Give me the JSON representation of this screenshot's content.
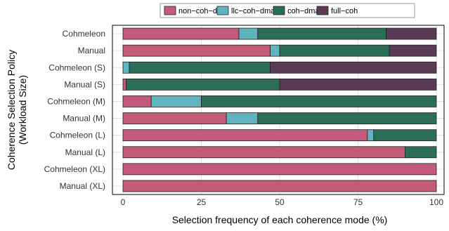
{
  "chart_data": {
    "type": "bar",
    "orientation": "horizontal",
    "stacked": true,
    "categories": [
      "Cohmeleon",
      "Manual",
      "Cohmeleon (S)",
      "Manual (S)",
      "Cohmeleon (M)",
      "Manual (M)",
      "Cohmeleon (L)",
      "Manual (L)",
      "Cohmeleon (XL)",
      "Manual (XL)"
    ],
    "series": [
      {
        "name": "non−coh−dma",
        "color": "#c45a7a",
        "values": [
          37,
          47,
          0,
          1,
          9,
          33,
          78,
          90,
          100,
          100
        ]
      },
      {
        "name": "llc−coh−dma",
        "color": "#5fb4bf",
        "values": [
          6,
          3,
          2,
          0,
          16,
          10,
          2,
          0,
          0,
          0
        ]
      },
      {
        "name": "coh−dma",
        "color": "#2b6e58",
        "values": [
          41,
          35,
          45,
          49,
          75,
          57,
          20,
          10,
          0,
          0
        ]
      },
      {
        "name": "full−coh",
        "color": "#5a3a56",
        "values": [
          16,
          15,
          53,
          50,
          0,
          0,
          0,
          0,
          0,
          0
        ]
      }
    ],
    "xlabel": "Selection frequency of each coherence mode (%)",
    "ylabel": [
      "Coherence Selection Policy",
      "(Workload Size)"
    ],
    "xlim": [
      0,
      100
    ],
    "xticks": [
      "0",
      "25",
      "50",
      "75",
      "100"
    ],
    "grid": true,
    "legend_position": "top-right"
  }
}
